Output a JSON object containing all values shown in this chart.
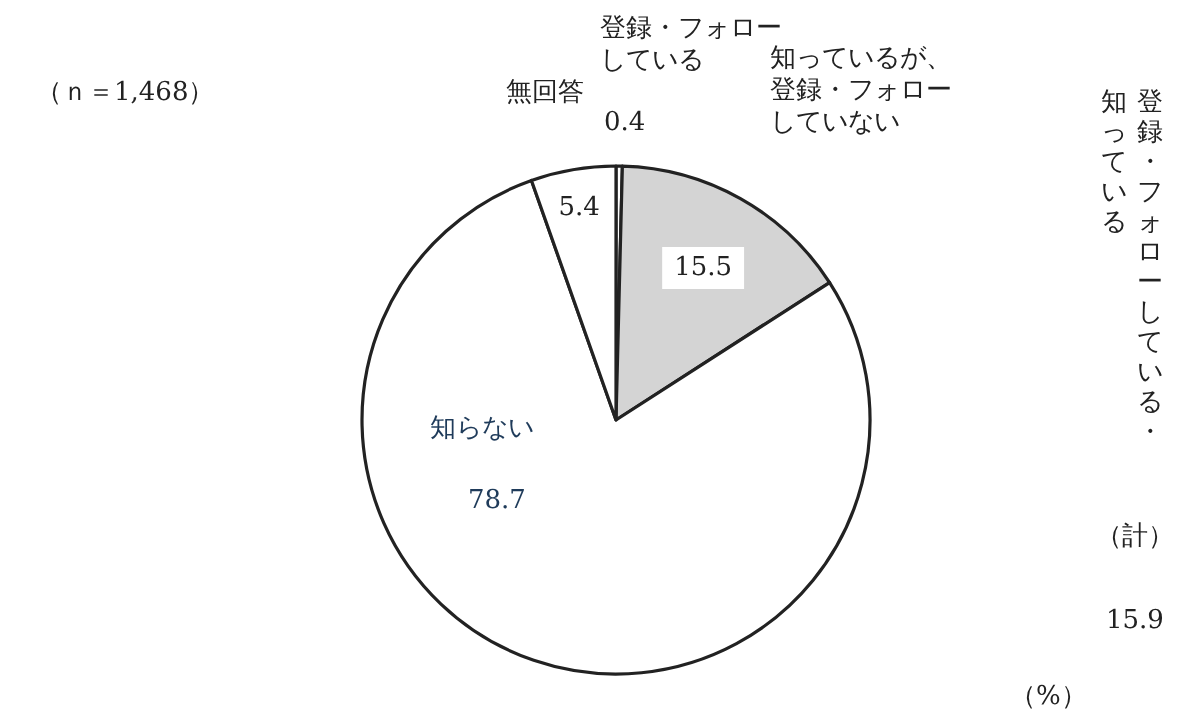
{
  "chart_data": {
    "type": "pie",
    "categories": [
      "登録・フォローしている",
      "知っているが、登録・フォローしていない",
      "知らない",
      "無回答"
    ],
    "values": [
      0.4,
      15.5,
      78.7,
      5.4
    ],
    "colors": [
      "#ffffff",
      "#d4d4d4",
      "#ffffff",
      "#ffffff"
    ],
    "data_labels": true,
    "annotations": [
      "（ｎ＝1,468）",
      "登録・フォローしている・",
      "知っている",
      "（計）",
      "15.9",
      "（%）"
    ]
  }
}
